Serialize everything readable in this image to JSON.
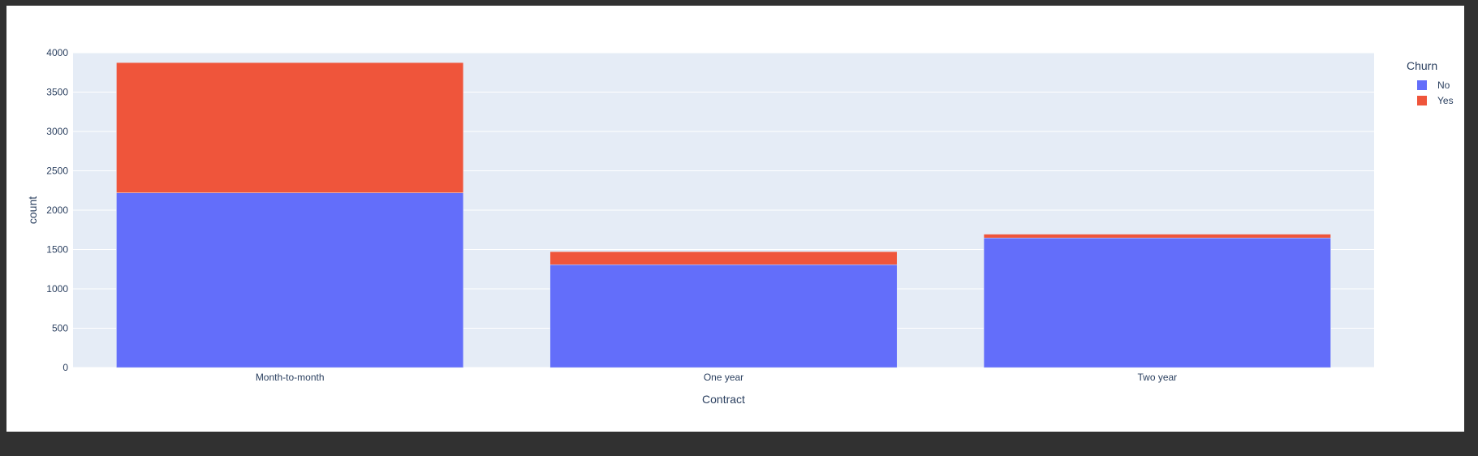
{
  "chart_data": {
    "type": "bar",
    "barmode": "stack",
    "categories": [
      "Month-to-month",
      "One year",
      "Two year"
    ],
    "series": [
      {
        "name": "No",
        "color": "#636efa",
        "values": [
          2220,
          1307,
          1647
        ]
      },
      {
        "name": "Yes",
        "color": "#ef553b",
        "values": [
          1655,
          166,
          48
        ]
      }
    ],
    "xlabel": "Contract",
    "ylabel": "count",
    "ylim": [
      0,
      4000
    ],
    "yticks": [
      0,
      500,
      1000,
      1500,
      2000,
      2500,
      3000,
      3500,
      4000
    ],
    "legend": {
      "title": "Churn",
      "position": "top-right"
    },
    "grid": true,
    "plot_bgcolor": "#e5ecf6",
    "text_color": "#2a3f5f"
  }
}
